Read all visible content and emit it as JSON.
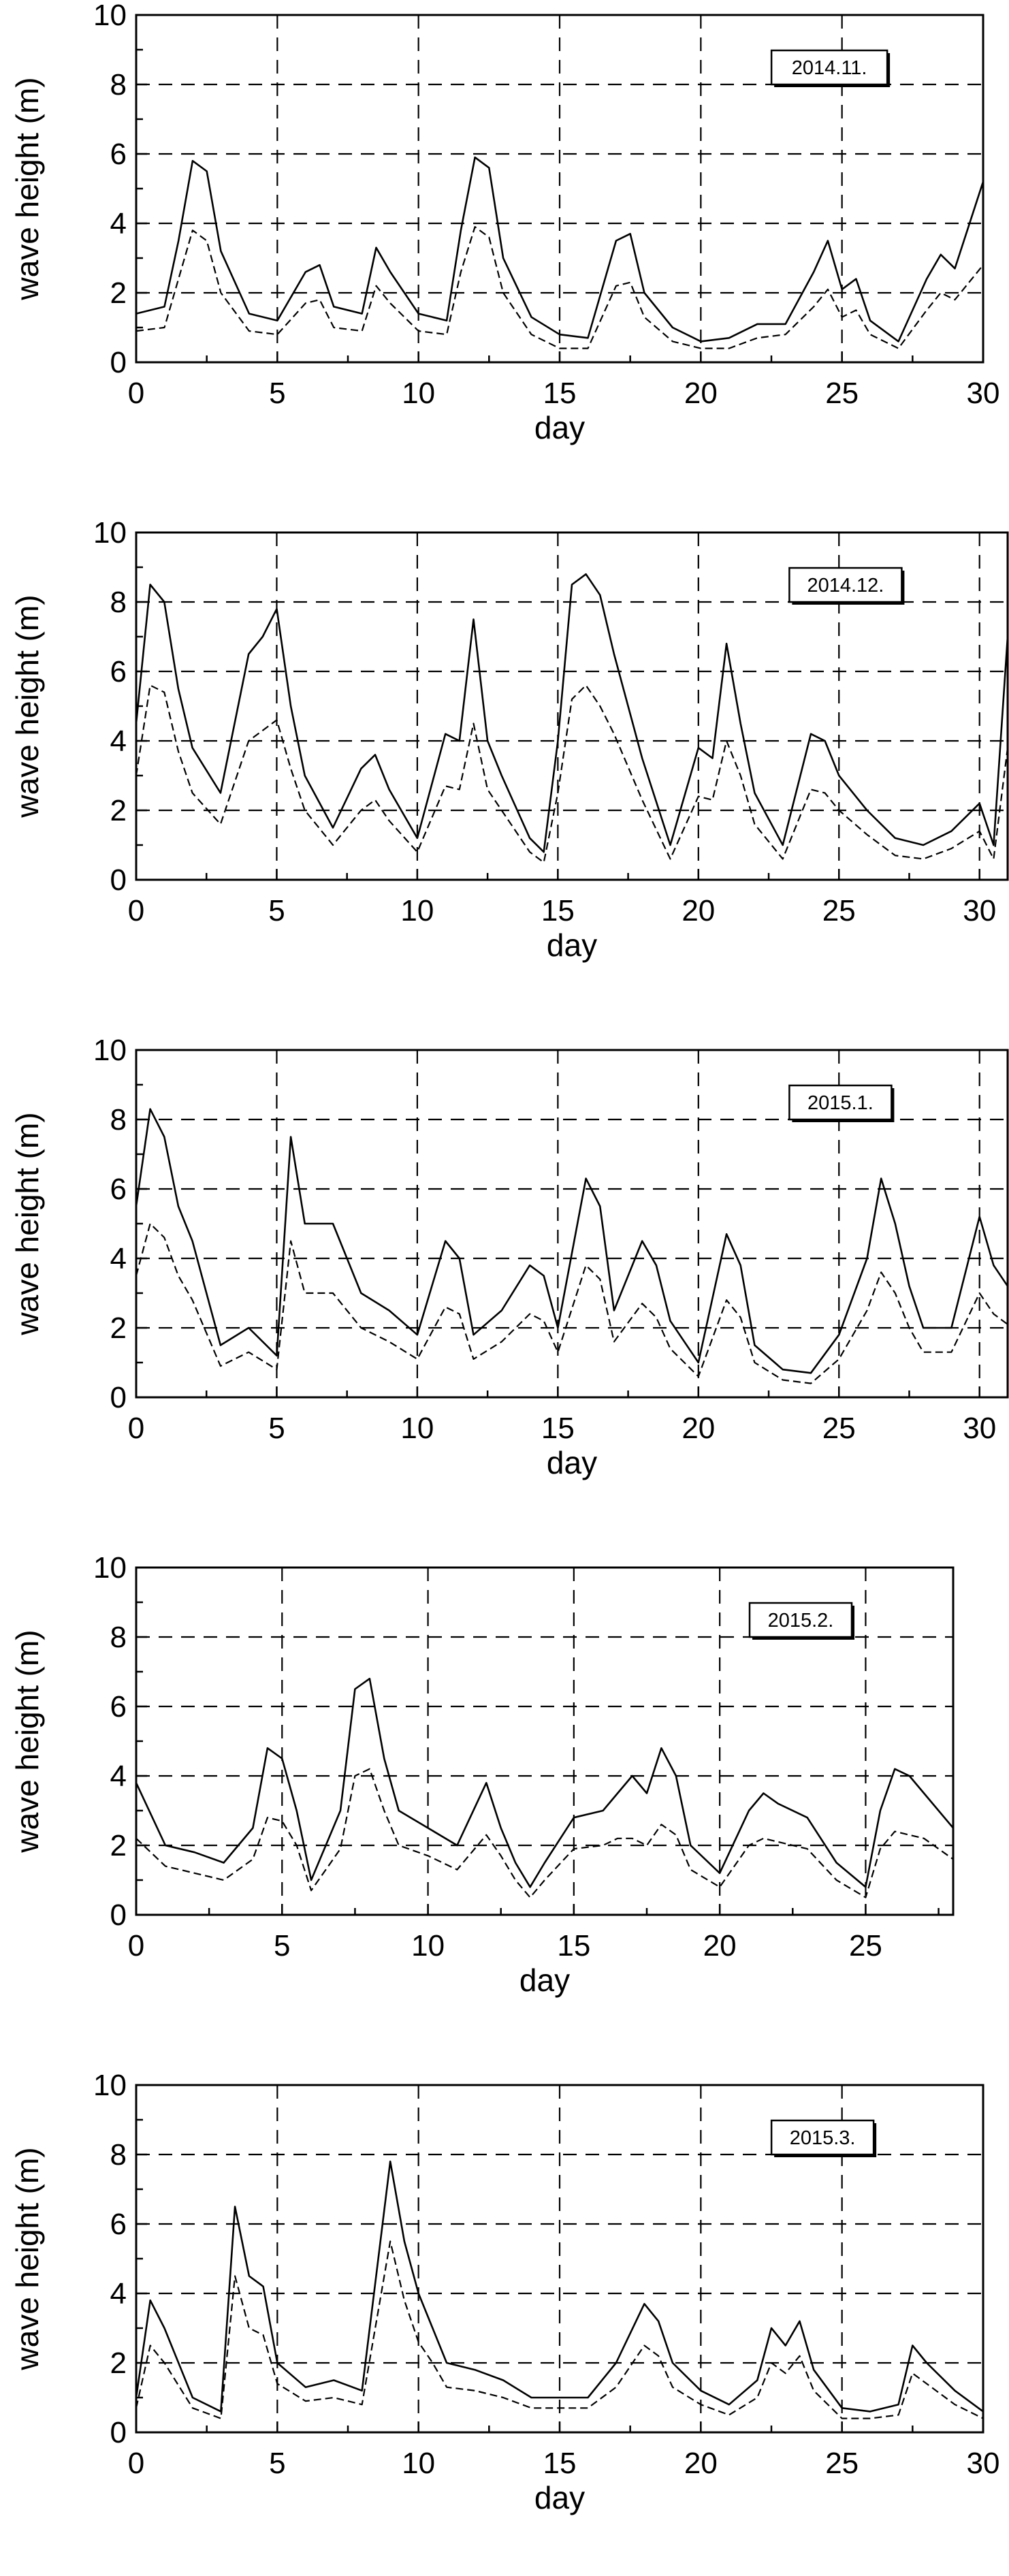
{
  "chart_data": [
    {
      "type": "line",
      "title": "2014.11.",
      "xlabel": "day",
      "ylabel": "wave height (m)",
      "xlim": [
        0,
        30
      ],
      "ylim": [
        0,
        10
      ],
      "xticks": [
        0,
        5,
        10,
        15,
        20,
        25,
        30
      ],
      "yticks": [
        0,
        2,
        4,
        6,
        8,
        10
      ],
      "grid": true,
      "series": [
        {
          "name": "solid",
          "style": "solid",
          "x": [
            0,
            1,
            1.5,
            2,
            2.5,
            3,
            4,
            5,
            6,
            6.5,
            7,
            8,
            8.5,
            9,
            10,
            11,
            11.5,
            12,
            12.5,
            13,
            14,
            15,
            16,
            17,
            17.5,
            18,
            19,
            20,
            21,
            22,
            23,
            24,
            24.5,
            25,
            25.5,
            26,
            27,
            28,
            28.5,
            29,
            30
          ],
          "y": [
            1.4,
            1.6,
            3.5,
            5.8,
            5.5,
            3.2,
            1.4,
            1.2,
            2.6,
            2.8,
            1.6,
            1.4,
            3.3,
            2.6,
            1.4,
            1.2,
            3.8,
            5.9,
            5.6,
            3.0,
            1.3,
            0.8,
            0.7,
            3.5,
            3.7,
            2.0,
            1.0,
            0.6,
            0.7,
            1.1,
            1.1,
            2.6,
            3.5,
            2.1,
            2.4,
            1.2,
            0.6,
            2.4,
            3.1,
            2.7,
            5.2
          ]
        },
        {
          "name": "dashed",
          "style": "dashed",
          "x": [
            0,
            1,
            1.5,
            2,
            2.5,
            3,
            4,
            5,
            6,
            6.5,
            7,
            8,
            8.5,
            9,
            10,
            11,
            11.5,
            12,
            12.5,
            13,
            14,
            15,
            16,
            17,
            17.5,
            18,
            19,
            20,
            21,
            22,
            23,
            24,
            24.5,
            25,
            25.5,
            26,
            27,
            28,
            28.5,
            29,
            30
          ],
          "y": [
            0.9,
            1.0,
            2.4,
            3.8,
            3.5,
            2.0,
            0.9,
            0.8,
            1.7,
            1.8,
            1.0,
            0.9,
            2.2,
            1.7,
            0.9,
            0.8,
            2.6,
            3.9,
            3.6,
            2.0,
            0.8,
            0.4,
            0.4,
            2.2,
            2.3,
            1.3,
            0.6,
            0.4,
            0.4,
            0.7,
            0.8,
            1.6,
            2.1,
            1.3,
            1.5,
            0.8,
            0.4,
            1.5,
            2.0,
            1.8,
            2.8
          ]
        }
      ]
    },
    {
      "type": "line",
      "title": "2014.12.",
      "xlabel": "day",
      "ylabel": "wave height (m)",
      "xlim": [
        0,
        31
      ],
      "ylim": [
        0,
        10
      ],
      "xticks": [
        0,
        5,
        10,
        15,
        20,
        25,
        30
      ],
      "yticks": [
        0,
        2,
        4,
        6,
        8,
        10
      ],
      "grid": true,
      "series": [
        {
          "name": "solid",
          "style": "solid",
          "x": [
            0,
            0.5,
            1,
            1.5,
            2,
            3,
            4,
            4.5,
            5,
            5.5,
            6,
            7,
            8,
            8.5,
            9,
            10,
            11,
            11.5,
            12,
            12.5,
            13,
            14,
            14.5,
            15,
            15.5,
            16,
            16.5,
            17,
            18,
            19,
            20,
            20.5,
            21,
            21.5,
            22,
            23,
            24,
            24.5,
            25,
            26,
            27,
            28,
            29,
            30,
            30.5,
            31
          ],
          "y": [
            4.5,
            8.5,
            8.0,
            5.5,
            3.8,
            2.5,
            6.5,
            7.0,
            7.8,
            5.0,
            3.0,
            1.5,
            3.2,
            3.6,
            2.6,
            1.2,
            4.2,
            4.0,
            7.5,
            4.0,
            3.0,
            1.2,
            0.8,
            4.0,
            8.5,
            8.8,
            8.2,
            6.5,
            3.5,
            1.0,
            3.8,
            3.5,
            6.8,
            4.5,
            2.5,
            1.0,
            4.2,
            4.0,
            3.0,
            2.0,
            1.2,
            1.0,
            1.4,
            2.2,
            1.0,
            7.0
          ]
        },
        {
          "name": "dashed",
          "style": "dashed",
          "x": [
            0,
            0.5,
            1,
            1.5,
            2,
            3,
            4,
            4.5,
            5,
            5.5,
            6,
            7,
            8,
            8.5,
            9,
            10,
            11,
            11.5,
            12,
            12.5,
            13,
            14,
            14.5,
            15,
            15.5,
            16,
            16.5,
            17,
            18,
            19,
            20,
            20.5,
            21,
            21.5,
            22,
            23,
            24,
            24.5,
            25,
            26,
            27,
            28,
            29,
            30,
            30.5,
            31
          ],
          "y": [
            3.0,
            5.6,
            5.4,
            3.7,
            2.5,
            1.6,
            4.0,
            4.3,
            4.6,
            3.2,
            2.0,
            1.0,
            2.0,
            2.3,
            1.7,
            0.8,
            2.7,
            2.6,
            4.5,
            2.6,
            2.0,
            0.8,
            0.5,
            2.5,
            5.2,
            5.6,
            5.0,
            4.2,
            2.3,
            0.6,
            2.4,
            2.3,
            4.0,
            3.0,
            1.6,
            0.6,
            2.6,
            2.5,
            2.0,
            1.3,
            0.7,
            0.6,
            0.9,
            1.4,
            0.6,
            3.8
          ]
        }
      ]
    },
    {
      "type": "line",
      "title": "2015.1.",
      "xlabel": "day",
      "ylabel": "wave height (m)",
      "xlim": [
        0,
        31
      ],
      "ylim": [
        0,
        10
      ],
      "xticks": [
        0,
        5,
        10,
        15,
        20,
        25,
        30
      ],
      "yticks": [
        0,
        2,
        4,
        6,
        8,
        10
      ],
      "grid": true,
      "series": [
        {
          "name": "solid",
          "style": "solid",
          "x": [
            0,
            0.5,
            1,
            1.5,
            2,
            3,
            4,
            5,
            5.5,
            6,
            7,
            8,
            9,
            10,
            11,
            11.5,
            12,
            13,
            14,
            14.5,
            15,
            16,
            16.5,
            17,
            18,
            18.5,
            19,
            20,
            21,
            21.5,
            22,
            23,
            24,
            25,
            26,
            26.5,
            27,
            27.5,
            28,
            29,
            30,
            30.5,
            31
          ],
          "y": [
            5.5,
            8.3,
            7.5,
            5.5,
            4.5,
            1.5,
            2.0,
            1.2,
            7.5,
            5.0,
            5.0,
            3.0,
            2.5,
            1.8,
            4.5,
            4.0,
            1.8,
            2.5,
            3.8,
            3.5,
            2.0,
            6.3,
            5.5,
            2.5,
            4.5,
            3.8,
            2.2,
            1.0,
            4.7,
            3.8,
            1.5,
            0.8,
            0.7,
            1.8,
            4.0,
            6.3,
            5.0,
            3.2,
            2.0,
            2.0,
            5.2,
            3.8,
            3.2
          ]
        },
        {
          "name": "dashed",
          "style": "dashed",
          "x": [
            0,
            0.5,
            1,
            1.5,
            2,
            3,
            4,
            5,
            5.5,
            6,
            7,
            8,
            9,
            10,
            11,
            11.5,
            12,
            13,
            14,
            14.5,
            15,
            16,
            16.5,
            17,
            18,
            18.5,
            19,
            20,
            21,
            21.5,
            22,
            23,
            24,
            25,
            26,
            26.5,
            27,
            27.5,
            28,
            29,
            30,
            30.5,
            31
          ],
          "y": [
            3.5,
            5.0,
            4.6,
            3.5,
            2.8,
            0.9,
            1.3,
            0.8,
            4.5,
            3.0,
            3.0,
            2.0,
            1.6,
            1.1,
            2.6,
            2.4,
            1.1,
            1.6,
            2.4,
            2.2,
            1.3,
            3.8,
            3.4,
            1.6,
            2.7,
            2.3,
            1.4,
            0.6,
            2.8,
            2.3,
            1.0,
            0.5,
            0.4,
            1.1,
            2.5,
            3.6,
            3.0,
            2.0,
            1.3,
            1.3,
            3.0,
            2.4,
            2.1
          ]
        }
      ]
    },
    {
      "type": "line",
      "title": "2015.2.",
      "xlabel": "day",
      "ylabel": "wave height (m)",
      "xlim": [
        0,
        28
      ],
      "ylim": [
        0,
        10
      ],
      "xticks": [
        0,
        5,
        10,
        15,
        20,
        25
      ],
      "yticks": [
        0,
        2,
        4,
        6,
        8,
        10
      ],
      "grid": true,
      "series": [
        {
          "name": "solid",
          "style": "solid",
          "x": [
            0,
            1,
            2,
            3,
            4,
            4.5,
            5,
            5.5,
            6,
            7,
            7.5,
            8,
            8.5,
            9,
            10,
            11,
            12,
            12.5,
            13,
            13.5,
            14,
            15,
            16,
            16.5,
            17,
            17.5,
            18,
            18.5,
            19,
            20,
            21,
            21.5,
            22,
            23,
            24,
            25,
            25.5,
            26,
            26.5,
            27,
            28
          ],
          "y": [
            3.8,
            2.0,
            1.8,
            1.5,
            2.5,
            4.8,
            4.5,
            3.0,
            1.0,
            3.0,
            6.5,
            6.8,
            4.5,
            3.0,
            2.5,
            2.0,
            3.8,
            2.5,
            1.5,
            0.8,
            1.5,
            2.8,
            3.0,
            3.5,
            4.0,
            3.5,
            4.8,
            4.0,
            2.0,
            1.2,
            3.0,
            3.5,
            3.2,
            2.8,
            1.5,
            0.8,
            3.0,
            4.2,
            4.0,
            3.5,
            2.5
          ]
        },
        {
          "name": "dashed",
          "style": "dashed",
          "x": [
            0,
            1,
            2,
            3,
            4,
            4.5,
            5,
            5.5,
            6,
            7,
            7.5,
            8,
            8.5,
            9,
            10,
            11,
            12,
            12.5,
            13,
            13.5,
            14,
            15,
            16,
            16.5,
            17,
            17.5,
            18,
            18.5,
            19,
            20,
            21,
            21.5,
            22,
            23,
            24,
            25,
            25.5,
            26,
            26.5,
            27,
            28
          ],
          "y": [
            2.2,
            1.4,
            1.2,
            1.0,
            1.6,
            2.8,
            2.7,
            2.0,
            0.7,
            1.9,
            4.0,
            4.2,
            3.0,
            2.0,
            1.7,
            1.3,
            2.3,
            1.7,
            1.0,
            0.5,
            1.0,
            1.9,
            2.0,
            2.2,
            2.2,
            2.0,
            2.6,
            2.3,
            1.3,
            0.8,
            2.0,
            2.2,
            2.1,
            1.9,
            1.0,
            0.5,
            1.9,
            2.4,
            2.3,
            2.2,
            1.6
          ]
        }
      ]
    },
    {
      "type": "line",
      "title": "2015.3.",
      "xlabel": "day",
      "ylabel": "wave height (m)",
      "xlim": [
        0,
        30
      ],
      "ylim": [
        0,
        10
      ],
      "xticks": [
        0,
        5,
        10,
        15,
        20,
        25,
        30
      ],
      "yticks": [
        0,
        2,
        4,
        6,
        8,
        10
      ],
      "grid": true,
      "series": [
        {
          "name": "solid",
          "style": "solid",
          "x": [
            0,
            0.5,
            1,
            2,
            3,
            3.5,
            4,
            4.5,
            5,
            6,
            7,
            8,
            9,
            9.5,
            10,
            10.5,
            11,
            12,
            13,
            14,
            15,
            16,
            17,
            18,
            18.5,
            19,
            20,
            21,
            22,
            22.5,
            23,
            23.5,
            24,
            25,
            26,
            27,
            27.5,
            28,
            29,
            30
          ],
          "y": [
            1.0,
            3.8,
            3.0,
            1.0,
            0.6,
            6.5,
            4.5,
            4.2,
            2.0,
            1.3,
            1.5,
            1.2,
            7.8,
            5.5,
            4.0,
            3.0,
            2.0,
            1.8,
            1.5,
            1.0,
            1.0,
            1.0,
            2.0,
            3.7,
            3.2,
            2.0,
            1.2,
            0.8,
            1.5,
            3.0,
            2.5,
            3.2,
            1.8,
            0.7,
            0.6,
            0.8,
            2.5,
            2.0,
            1.2,
            0.6
          ]
        },
        {
          "name": "dashed",
          "style": "dashed",
          "x": [
            0,
            0.5,
            1,
            2,
            3,
            3.5,
            4,
            4.5,
            5,
            6,
            7,
            8,
            9,
            9.5,
            10,
            10.5,
            11,
            12,
            13,
            14,
            15,
            16,
            17,
            18,
            18.5,
            19,
            20,
            21,
            22,
            22.5,
            23,
            23.5,
            24,
            25,
            26,
            27,
            27.5,
            28,
            29,
            30
          ],
          "y": [
            0.7,
            2.5,
            2.0,
            0.7,
            0.4,
            4.5,
            3.0,
            2.8,
            1.4,
            0.9,
            1.0,
            0.8,
            5.5,
            3.8,
            2.6,
            2.0,
            1.3,
            1.2,
            1.0,
            0.7,
            0.7,
            0.7,
            1.3,
            2.5,
            2.2,
            1.3,
            0.8,
            0.5,
            1.0,
            2.0,
            1.7,
            2.2,
            1.2,
            0.4,
            0.4,
            0.5,
            1.7,
            1.4,
            0.8,
            0.4
          ]
        }
      ]
    }
  ]
}
